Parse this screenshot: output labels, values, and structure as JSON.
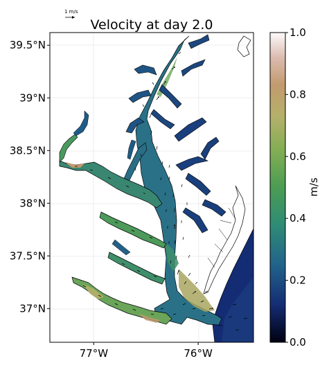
{
  "chart_data": {
    "type": "heatmap",
    "title": "Velocity at day 2.0",
    "quiver_key": {
      "label": "1 m/s"
    },
    "x_axis": {
      "ticks": [
        {
          "value": -77.0,
          "label": "77°W"
        },
        {
          "value": -76.0,
          "label": "76°W"
        }
      ],
      "range": [
        -77.42,
        -75.47
      ]
    },
    "y_axis": {
      "ticks": [
        {
          "value": 39.5,
          "label": "39.5°N"
        },
        {
          "value": 39.0,
          "label": "39°N"
        },
        {
          "value": 38.5,
          "label": "38.5°N"
        },
        {
          "value": 38.0,
          "label": "38°N"
        },
        {
          "value": 37.5,
          "label": "37.5°N"
        },
        {
          "value": 37.0,
          "label": "37°N"
        }
      ],
      "range": [
        36.68,
        39.62
      ]
    },
    "colorbar": {
      "label": "m/s",
      "range": [
        0.0,
        1.0
      ],
      "ticks": [
        "0.0",
        "0.2",
        "0.4",
        "0.6",
        "0.8",
        "1.0"
      ],
      "colormap": "gist_earth"
    },
    "grid": true
  }
}
